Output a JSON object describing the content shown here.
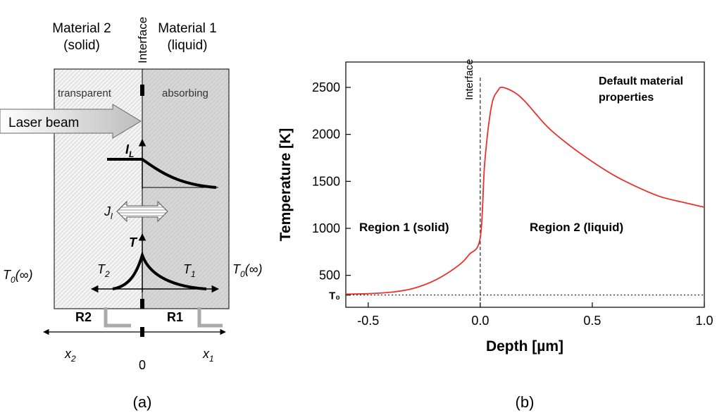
{
  "diagram": {
    "material2": [
      "Material 2",
      "(solid)"
    ],
    "interface": "Interface",
    "material1": [
      "Material 1",
      "(liquid)"
    ],
    "transparent": "transparent",
    "absorbing": "absorbing",
    "laser": "Laser beam",
    "intensity": {
      "main": "I",
      "sub": "L"
    },
    "flux": {
      "main": "J",
      "sub": "l"
    },
    "temperature": "T",
    "t2": {
      "main": "T",
      "sub": "2"
    },
    "t1": {
      "main": "T",
      "sub": "1"
    },
    "t0_left": {
      "main": "T",
      "sub": "0",
      "rest": "(∞)"
    },
    "t0_right": {
      "main": "T",
      "sub": "0",
      "rest": "(∞)"
    },
    "r2": "R2",
    "r1": "R1",
    "x2": {
      "main": "x",
      "sub": "2"
    },
    "origin": "0",
    "x1": {
      "main": "x",
      "sub": "1"
    }
  },
  "captions": [
    "(a)",
    "(b)"
  ],
  "chart_data": {
    "type": "line",
    "x_label": "Depth [µm]",
    "y_label": "Temperature [K]",
    "x": [
      -0.6,
      -0.5,
      -0.4,
      -0.3,
      -0.2,
      -0.1,
      -0.05,
      0,
      0.02,
      0.05,
      0.08,
      0.1,
      0.15,
      0.2,
      0.3,
      0.4,
      0.5,
      0.6,
      0.7,
      0.8,
      0.9,
      1.0
    ],
    "values": [
      300,
      305,
      320,
      360,
      450,
      600,
      720,
      900,
      1700,
      2300,
      2470,
      2500,
      2450,
      2350,
      2080,
      1880,
      1710,
      1560,
      1440,
      1340,
      1280,
      1225
    ],
    "color": "#e8322b",
    "xlim": [
      -0.6,
      1.0
    ],
    "ylim": [
      160,
      2770
    ],
    "xticks": [
      -0.5,
      {
        "value": 0,
        "label": "0.0"
      },
      0.5,
      {
        "value": 1,
        "label": "1.0"
      }
    ],
    "yticks": [
      {
        "value": 290,
        "label": "T₀"
      },
      500,
      1000,
      1500,
      2000,
      2500
    ],
    "vlines": [
      0
    ],
    "hlines": [
      290
    ],
    "annotations": {
      "interface": "Interface",
      "material": [
        "Default material",
        "properties"
      ],
      "region1": "Region 1 (solid)",
      "region2": "Region 2 (liquid)"
    }
  }
}
